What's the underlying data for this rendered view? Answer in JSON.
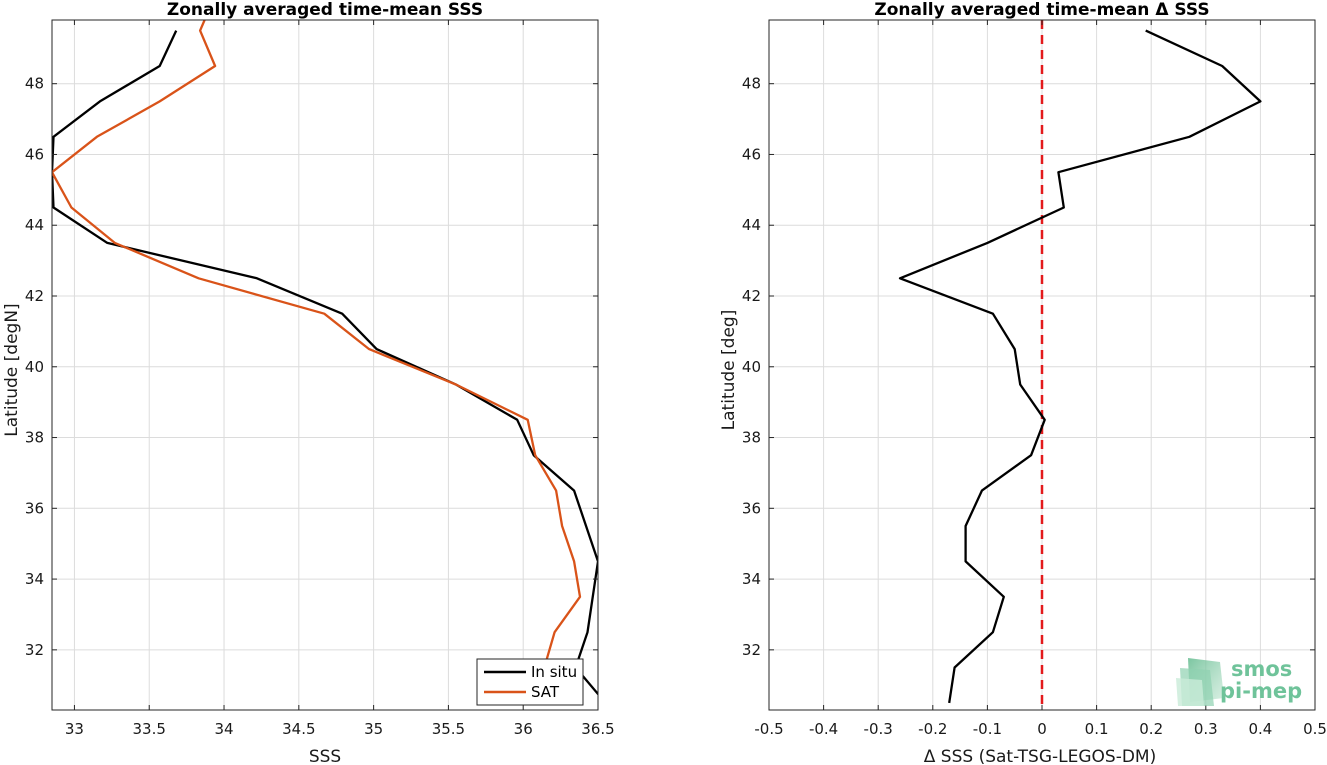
{
  "chart_data": [
    {
      "type": "line",
      "title": "Zonally averaged time-mean SSS",
      "xlabel": "SSS",
      "ylabel": "Latitude [degN]",
      "xlim": [
        32.85,
        36.5
      ],
      "ylim": [
        30.3,
        49.8
      ],
      "xticks": [
        33,
        33.5,
        34,
        34.5,
        35,
        35.5,
        36,
        36.5
      ],
      "xtick_labels": [
        "33",
        "33.5",
        "34",
        "34.5",
        "35",
        "35.5",
        "36",
        "36.5"
      ],
      "yticks": [
        32,
        34,
        36,
        38,
        40,
        42,
        44,
        46,
        48
      ],
      "ytick_labels": [
        "32",
        "34",
        "36",
        "38",
        "40",
        "42",
        "44",
        "46",
        "48"
      ],
      "grid": true,
      "legend_position": "bottom-right",
      "series": [
        {
          "name": "In situ",
          "color": "#000000",
          "x": [
            36.55,
            36.35,
            36.43,
            36.5,
            36.34,
            36.07,
            35.96,
            35.55,
            35.02,
            34.79,
            34.22,
            33.22,
            32.86,
            32.85,
            32.86,
            33.17,
            33.57,
            33.68
          ],
          "y": [
            30.5,
            31.5,
            32.5,
            34.5,
            36.5,
            37.5,
            38.5,
            39.5,
            40.5,
            41.5,
            42.5,
            43.5,
            44.5,
            45.5,
            46.5,
            47.5,
            48.5,
            49.5
          ]
        },
        {
          "name": "SAT",
          "color": "#d95319",
          "x": [
            36.29,
            36.12,
            36.21,
            36.38,
            36.34,
            36.26,
            36.22,
            36.08,
            36.03,
            35.55,
            34.97,
            34.67,
            33.83,
            33.27,
            32.98,
            32.85,
            33.15,
            33.57,
            33.94,
            33.84,
            33.87
          ],
          "y": [
            30.5,
            31.2,
            32.5,
            33.5,
            34.5,
            35.5,
            36.5,
            37.5,
            38.5,
            39.5,
            40.5,
            41.5,
            42.5,
            43.5,
            44.5,
            45.5,
            46.5,
            47.5,
            48.5,
            49.5,
            49.8
          ]
        }
      ]
    },
    {
      "type": "line",
      "title": "Zonally averaged time-mean Δ SSS",
      "xlabel": "Δ SSS (Sat-TSG-LEGOS-DM)",
      "ylabel": "Latitude [deg]",
      "xlim": [
        -0.5,
        0.5
      ],
      "ylim": [
        30.3,
        49.8
      ],
      "xticks": [
        -0.5,
        -0.4,
        -0.3,
        -0.2,
        -0.1,
        0,
        0.1,
        0.2,
        0.3,
        0.4,
        0.5
      ],
      "xtick_labels": [
        "-0.5",
        "-0.4",
        "-0.3",
        "-0.2",
        "-0.1",
        "0",
        "0.1",
        "0.2",
        "0.3",
        "0.4",
        "0.5"
      ],
      "yticks": [
        32,
        34,
        36,
        38,
        40,
        42,
        44,
        46,
        48
      ],
      "ytick_labels": [
        "32",
        "34",
        "36",
        "38",
        "40",
        "42",
        "44",
        "46",
        "48"
      ],
      "grid": true,
      "series": [
        {
          "color": "#000000",
          "x": [
            -0.17,
            -0.16,
            -0.09,
            -0.07,
            -0.14,
            -0.14,
            -0.11,
            -0.02,
            0.005,
            -0.04,
            -0.05,
            -0.09,
            -0.26,
            -0.1,
            0.04,
            0.03,
            0.27,
            0.4,
            0.33,
            0.19
          ],
          "y": [
            30.5,
            31.5,
            32.5,
            33.5,
            34.5,
            35.5,
            36.5,
            37.5,
            38.5,
            39.5,
            40.5,
            41.5,
            42.5,
            43.5,
            44.5,
            45.5,
            46.5,
            47.5,
            48.5,
            49.5
          ]
        }
      ],
      "reference_line": {
        "x": 0,
        "color": "#e31a1c",
        "style": "dashed"
      }
    }
  ],
  "logo": {
    "text_line1": "smos",
    "text_line2": "pi-mep",
    "color": "#6fc39a"
  }
}
